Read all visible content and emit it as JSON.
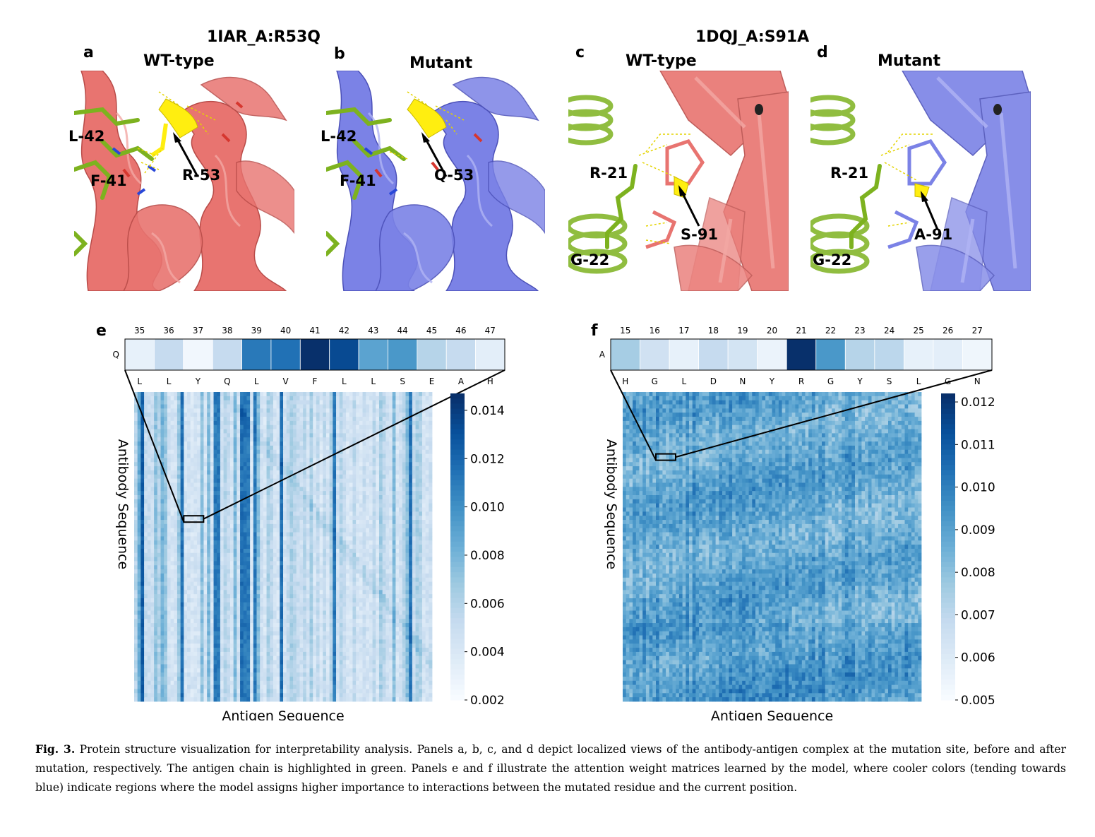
{
  "figure": {
    "group_left_title": "1IAR_A:R53Q",
    "group_right_title": "1DQJ_A:S91A",
    "panels": {
      "a": {
        "letter": "a",
        "subtitle": "WT-type",
        "labels": [
          "L-42",
          "F-41",
          "R-53"
        ],
        "protein_color": "#e87470"
      },
      "b": {
        "letter": "b",
        "subtitle": "Mutant",
        "labels": [
          "L-42",
          "F-41",
          "Q-53"
        ],
        "protein_color": "#7b82e6"
      },
      "c": {
        "letter": "c",
        "subtitle": "WT-type",
        "labels": [
          "R-21",
          "G-22",
          "S-91"
        ],
        "protein_color": "#e87470"
      },
      "d": {
        "letter": "d",
        "subtitle": "Mutant",
        "labels": [
          "R-21",
          "G-22",
          "A-91"
        ],
        "protein_color": "#7b82e6"
      }
    },
    "colors": {
      "antigen_green": "#7db21f",
      "highlight_yellow": "#ffee10",
      "heat_dark": "#08306b",
      "heat_light": "#f7fbff"
    }
  },
  "chart_data": [
    {
      "type": "heatmap",
      "panel": "e",
      "strip": {
        "row_label": "Q",
        "top_ticks": [
          "35",
          "36",
          "37",
          "38",
          "39",
          "40",
          "41",
          "42",
          "43",
          "44",
          "45",
          "46",
          "47"
        ],
        "bottom_ticks": [
          "L",
          "L",
          "Y",
          "Q",
          "L",
          "V",
          "F",
          "L",
          "L",
          "S",
          "E",
          "A",
          "H"
        ],
        "values": [
          0.08,
          0.25,
          0.03,
          0.25,
          0.72,
          0.75,
          1.0,
          0.9,
          0.55,
          0.6,
          0.3,
          0.25,
          0.1
        ]
      },
      "xlabel": "Antigen Sequence",
      "ylabel": "Antibody Sequence",
      "colorbar": {
        "ticks": [
          "0.014",
          "0.012",
          "0.010",
          "0.008",
          "0.006",
          "0.004",
          "0.002"
        ],
        "range": [
          0.002,
          0.0147
        ]
      }
    },
    {
      "type": "heatmap",
      "panel": "f",
      "strip": {
        "row_label": "A",
        "top_ticks": [
          "15",
          "16",
          "17",
          "18",
          "19",
          "20",
          "21",
          "22",
          "23",
          "24",
          "25",
          "26",
          "27"
        ],
        "bottom_ticks": [
          "H",
          "G",
          "L",
          "D",
          "N",
          "Y",
          "R",
          "G",
          "Y",
          "S",
          "L",
          "G",
          "N"
        ],
        "values": [
          0.35,
          0.2,
          0.08,
          0.25,
          0.18,
          0.06,
          1.0,
          0.6,
          0.3,
          0.28,
          0.08,
          0.1,
          0.04
        ]
      },
      "xlabel": "Antigen Sequence",
      "ylabel": "Antibody Sequence",
      "colorbar": {
        "ticks": [
          "0.012",
          "0.011",
          "0.010",
          "0.009",
          "0.008",
          "0.007",
          "0.006",
          "0.005"
        ],
        "range": [
          0.005,
          0.0122
        ]
      }
    }
  ],
  "caption": {
    "label": "Fig. 3.",
    "text": " Protein structure visualization for interpretability analysis. Panels a, b, c, and d depict localized views of the antibody-antigen complex at the mutation site, before and after mutation, respectively. The antigen chain is highlighted in green. Panels e and f illustrate the attention weight matrices learned by the model, where cooler colors (tending towards blue) indicate regions where the model assigns higher importance to interactions between the mutated residue and the current position."
  }
}
